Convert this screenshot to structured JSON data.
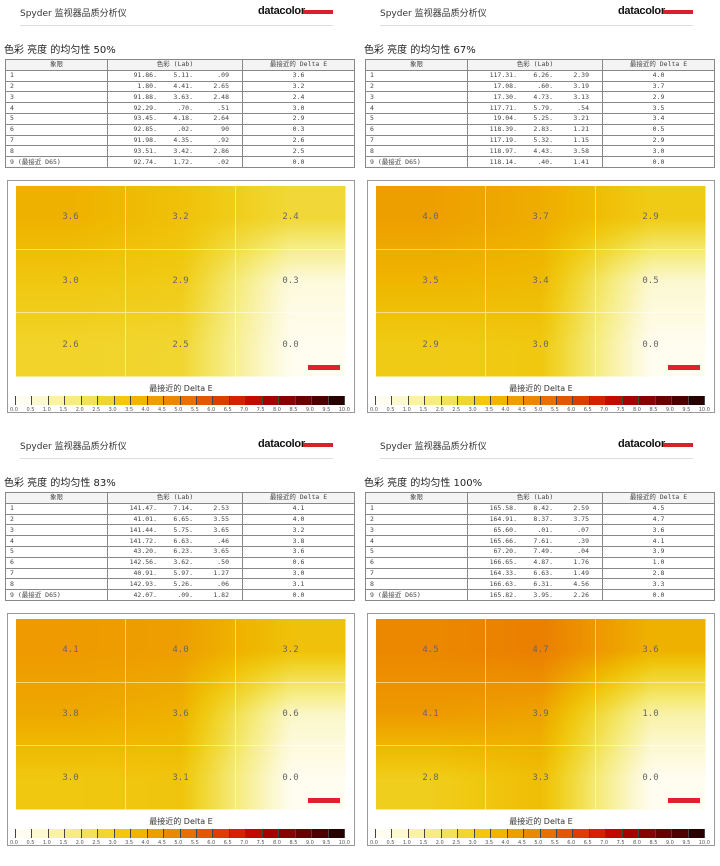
{
  "app_title": "Spyder 监视器品质分析仪",
  "brand": "datacolor",
  "table_headers": [
    "象限",
    "色彩 (Lab)",
    "最接近的 Delta E"
  ],
  "scale_title": "最接近的 Delta E",
  "scale_ticks": [
    "0.0",
    "0.5",
    "1.0",
    "1.5",
    "2.0",
    "2.5",
    "3.0",
    "3.5",
    "4.0",
    "4.5",
    "5.0",
    "5.5",
    "6.0",
    "6.5",
    "7.0",
    "7.5",
    "8.0",
    "8.5",
    "9.0",
    "9.5",
    "10.0"
  ],
  "scale_colors": [
    "#fffdf0",
    "#fcf8d0",
    "#f9f2a8",
    "#f6ec80",
    "#f3e258",
    "#f1d630",
    "#f0c810",
    "#efb600",
    "#ee9f00",
    "#ec8800",
    "#e97000",
    "#e55600",
    "#df3c00",
    "#d42200",
    "#c20a00",
    "#a80000",
    "#880000",
    "#680000",
    "#480000",
    "#280000"
  ],
  "panels": [
    {
      "title": "色彩 亮度 的均匀性 50%",
      "rows": [
        [
          "1",
          "91.86.",
          "5.11.",
          ".09",
          "3.6"
        ],
        [
          "2",
          "1.80.",
          "4.41.",
          "2.65",
          "3.2"
        ],
        [
          "3",
          "91.88.",
          "3.63.",
          "2.48",
          "2.4"
        ],
        [
          "4",
          "92.29.",
          ".70.",
          ".51",
          "3.0"
        ],
        [
          "5",
          "93.45.",
          "4.18.",
          "2.64",
          "2.9"
        ],
        [
          "6",
          "92.85.",
          ".02.",
          "90",
          "0.3"
        ],
        [
          "7",
          "91.98.",
          "4.35.",
          ".92",
          "2.6"
        ],
        [
          "8",
          "93.51.",
          "3.42.",
          "2.86",
          "2.5"
        ],
        [
          "9 (最接近 D65)",
          "92.74.",
          "1.72.",
          ".02",
          "0.0"
        ]
      ],
      "map": [
        "3.6",
        "3.2",
        "2.4",
        "3.0",
        "2.9",
        "0.3",
        "2.6",
        "2.5",
        "0.0"
      ]
    },
    {
      "title": "色彩 亮度 的均匀性 67%",
      "rows": [
        [
          "1",
          "117.31.",
          "6.26.",
          "2.39",
          "4.0"
        ],
        [
          "2",
          "17.08.",
          ".60.",
          "3.19",
          "3.7"
        ],
        [
          "3",
          "17.30.",
          "4.73.",
          "3.13",
          "2.9"
        ],
        [
          "4",
          "117.71.",
          "5.79.",
          ".54",
          "3.5"
        ],
        [
          "5",
          "19.04.",
          "5.25.",
          "3.21",
          "3.4"
        ],
        [
          "6",
          "118.39.",
          "2.83.",
          "1.21",
          "0.5"
        ],
        [
          "7",
          "117.19.",
          "5.32.",
          "1.15",
          "2.9"
        ],
        [
          "8",
          "118.97.",
          "4.43.",
          "3.58",
          "3.0"
        ],
        [
          "9 (最接近 D65)",
          "118.14.",
          ".40.",
          "1.41",
          "0.0"
        ]
      ],
      "map": [
        "4.0",
        "3.7",
        "2.9",
        "3.5",
        "3.4",
        "0.5",
        "2.9",
        "3.0",
        "0.0"
      ]
    },
    {
      "title": "色彩 亮度 的均匀性 83%",
      "rows": [
        [
          "1",
          "141.47.",
          "7.14.",
          "2.53",
          "4.1"
        ],
        [
          "2",
          "41.01.",
          "6.65.",
          "3.55",
          "4.0"
        ],
        [
          "3",
          "141.44.",
          "5.75.",
          "3.65",
          "3.2"
        ],
        [
          "4",
          "141.72.",
          "6.63.",
          ".46",
          "3.8"
        ],
        [
          "5",
          "43.20.",
          "6.23.",
          "3.65",
          "3.6"
        ],
        [
          "6",
          "142.56.",
          "3.62.",
          ".50",
          "0.6"
        ],
        [
          "7",
          "40.91.",
          "5.97.",
          "1.27",
          "3.0"
        ],
        [
          "8",
          "142.93.",
          "5.26.",
          ".06",
          "3.1"
        ],
        [
          "9 (最接近 D65)",
          "42.07.",
          ".09.",
          "1.82",
          "0.0"
        ]
      ],
      "map": [
        "4.1",
        "4.0",
        "3.2",
        "3.8",
        "3.6",
        "0.6",
        "3.0",
        "3.1",
        "0.0"
      ]
    },
    {
      "title": "色彩 亮度 的均匀性 100%",
      "rows": [
        [
          "1",
          "165.58.",
          "8.42.",
          "2.59",
          "4.5"
        ],
        [
          "2",
          "164.91.",
          "8.37.",
          "3.75",
          "4.7"
        ],
        [
          "3",
          "65.60.",
          ".01.",
          ".07",
          "3.6"
        ],
        [
          "4",
          "165.66.",
          "7.61.",
          ".39",
          "4.1"
        ],
        [
          "5",
          "67.20.",
          "7.49.",
          ".04",
          "3.9"
        ],
        [
          "6",
          "166.65.",
          "4.87.",
          "1.76",
          "1.0"
        ],
        [
          "7",
          "164.33.",
          "6.63.",
          "1.49",
          "2.8"
        ],
        [
          "8",
          "166.63.",
          "6.31.",
          "4.56",
          "3.3"
        ],
        [
          "9 (最接近 D65)",
          "165.82.",
          "3.95.",
          "2.26",
          "0.0"
        ]
      ],
      "map": [
        "4.5",
        "4.7",
        "3.6",
        "4.1",
        "3.9",
        "1.0",
        "2.8",
        "3.3",
        "0.0"
      ]
    }
  ]
}
